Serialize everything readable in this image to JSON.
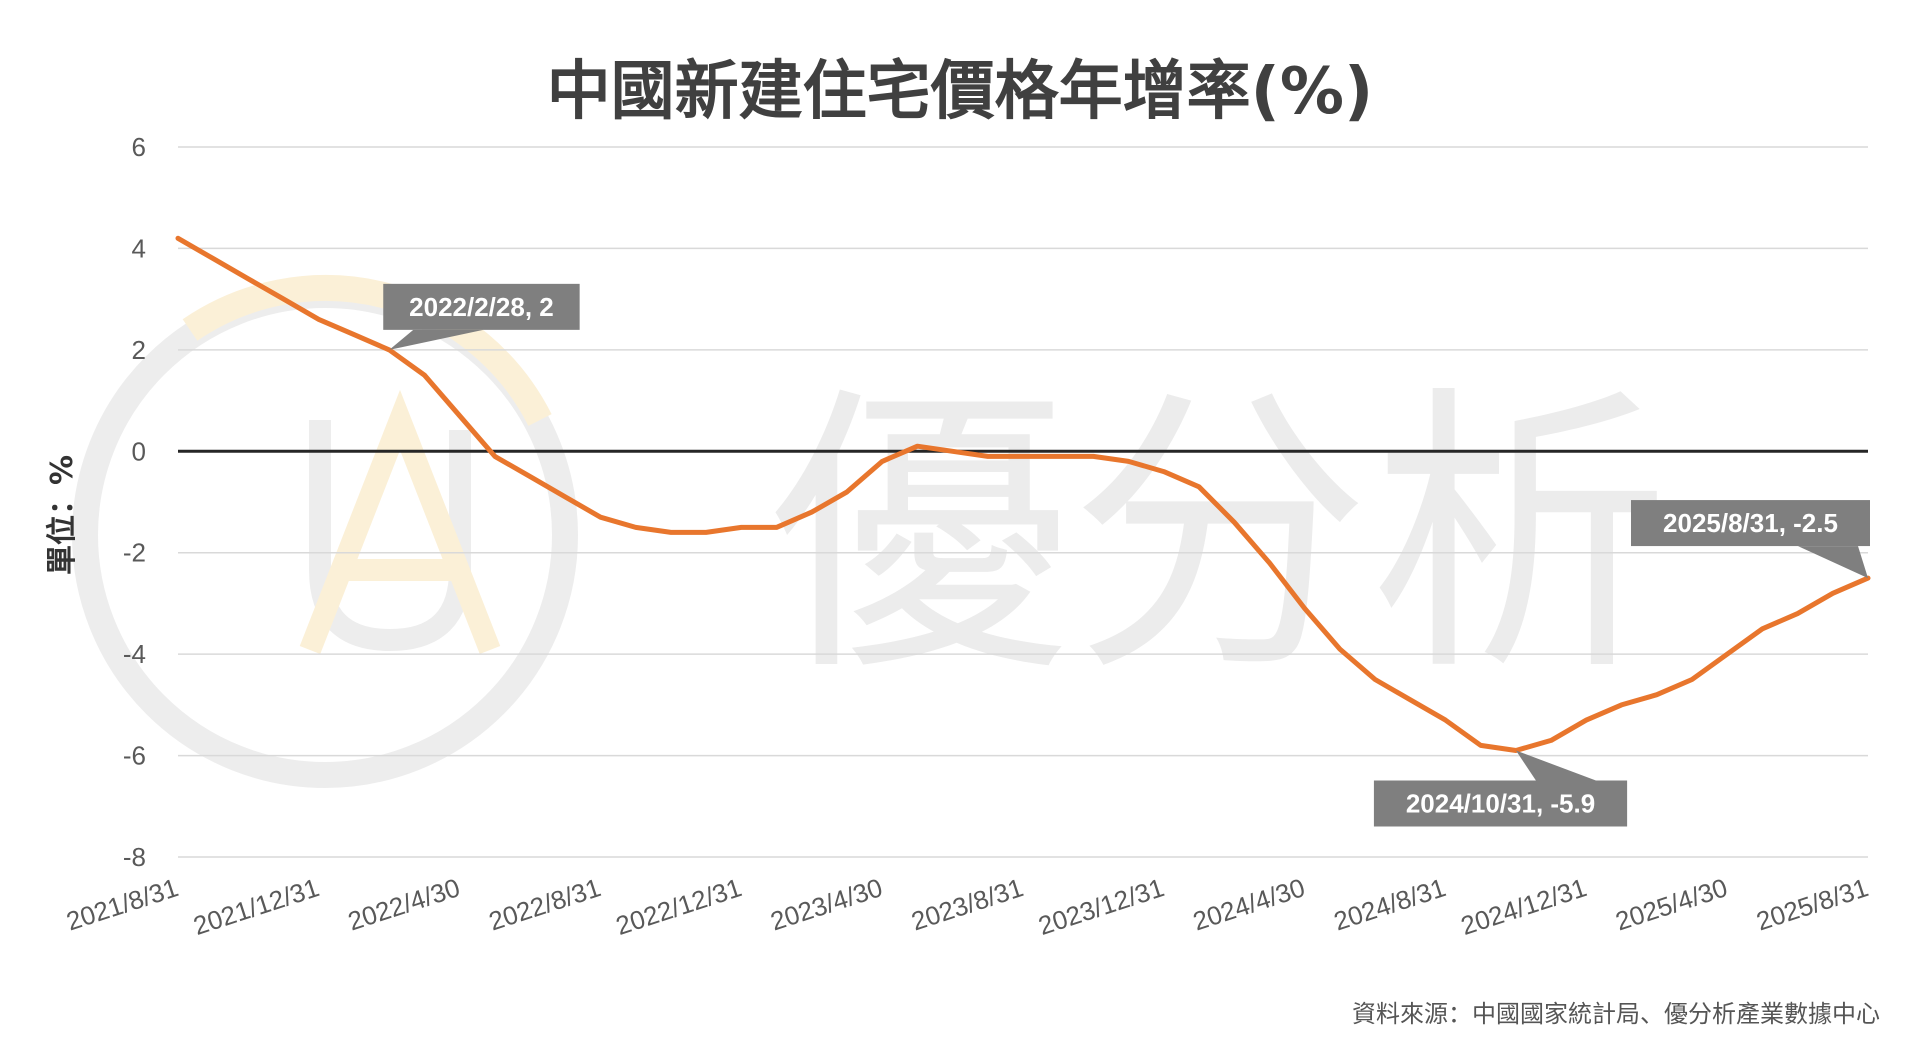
{
  "watermark": {
    "text": "優分析"
  },
  "source": "資料來源：中國國家統計局、優分析產業數據中心",
  "colors": {
    "line": "#E8762D",
    "annotation_bg": "#7F7F7F",
    "grid": "#d9d9d9",
    "zero_line": "#262626"
  },
  "chart_data": {
    "type": "line",
    "title": "中國新建住宅價格年增率(%)",
    "ylabel": "單位：%",
    "xlabel": "",
    "ylim": [
      -8,
      6
    ],
    "yticks": [
      6,
      4,
      2,
      0,
      -2,
      -4,
      -6,
      -8
    ],
    "grid": true,
    "x": [
      "2021/8/31",
      "2021/9/30",
      "2021/10/31",
      "2021/11/30",
      "2021/12/31",
      "2022/1/31",
      "2022/2/28",
      "2022/3/31",
      "2022/4/30",
      "2022/5/31",
      "2022/6/30",
      "2022/7/31",
      "2022/8/31",
      "2022/9/30",
      "2022/10/31",
      "2022/11/30",
      "2022/12/31",
      "2023/1/31",
      "2023/2/28",
      "2023/3/31",
      "2023/4/30",
      "2023/5/31",
      "2023/6/30",
      "2023/7/31",
      "2023/8/31",
      "2023/9/30",
      "2023/10/31",
      "2023/11/30",
      "2023/12/31",
      "2024/1/31",
      "2024/2/29",
      "2024/3/31",
      "2024/4/30",
      "2024/5/31",
      "2024/6/30",
      "2024/7/31",
      "2024/8/31",
      "2024/9/30",
      "2024/10/31",
      "2024/11/30",
      "2024/12/31",
      "2025/1/31",
      "2025/2/28",
      "2025/3/31",
      "2025/4/30",
      "2025/5/31",
      "2025/6/30",
      "2025/7/31",
      "2025/8/31"
    ],
    "xtick_labels": [
      "2021/8/31",
      "2021/12/31",
      "2022/4/30",
      "2022/8/31",
      "2022/12/31",
      "2023/4/30",
      "2023/8/31",
      "2023/12/31",
      "2024/4/30",
      "2024/8/31",
      "2024/12/31",
      "2025/4/30",
      "2025/8/31"
    ],
    "series": [
      {
        "values": [
          4.2,
          3.8,
          3.4,
          3.0,
          2.6,
          2.3,
          2.0,
          1.5,
          0.7,
          -0.1,
          -0.5,
          -0.9,
          -1.3,
          -1.5,
          -1.6,
          -1.6,
          -1.5,
          -1.5,
          -1.2,
          -0.8,
          -0.2,
          0.1,
          0.0,
          -0.1,
          -0.1,
          -0.1,
          -0.1,
          -0.2,
          -0.4,
          -0.7,
          -1.4,
          -2.2,
          -3.1,
          -3.9,
          -4.5,
          -4.9,
          -5.3,
          -5.8,
          -5.9,
          -5.7,
          -5.3,
          -5.0,
          -4.8,
          -4.5,
          -4.0,
          -3.5,
          -3.2,
          -2.8,
          -2.5
        ]
      }
    ],
    "annotations": [
      {
        "label": "2022/2/28, 2",
        "x": "2022/2/28",
        "y": 2.0,
        "position": "above-right"
      },
      {
        "label": "2024/10/31, -5.9",
        "x": "2024/10/31",
        "y": -5.9,
        "position": "below"
      },
      {
        "label": "2025/8/31, -2.5",
        "x": "2025/8/31",
        "y": -2.5,
        "position": "above-left"
      }
    ]
  }
}
